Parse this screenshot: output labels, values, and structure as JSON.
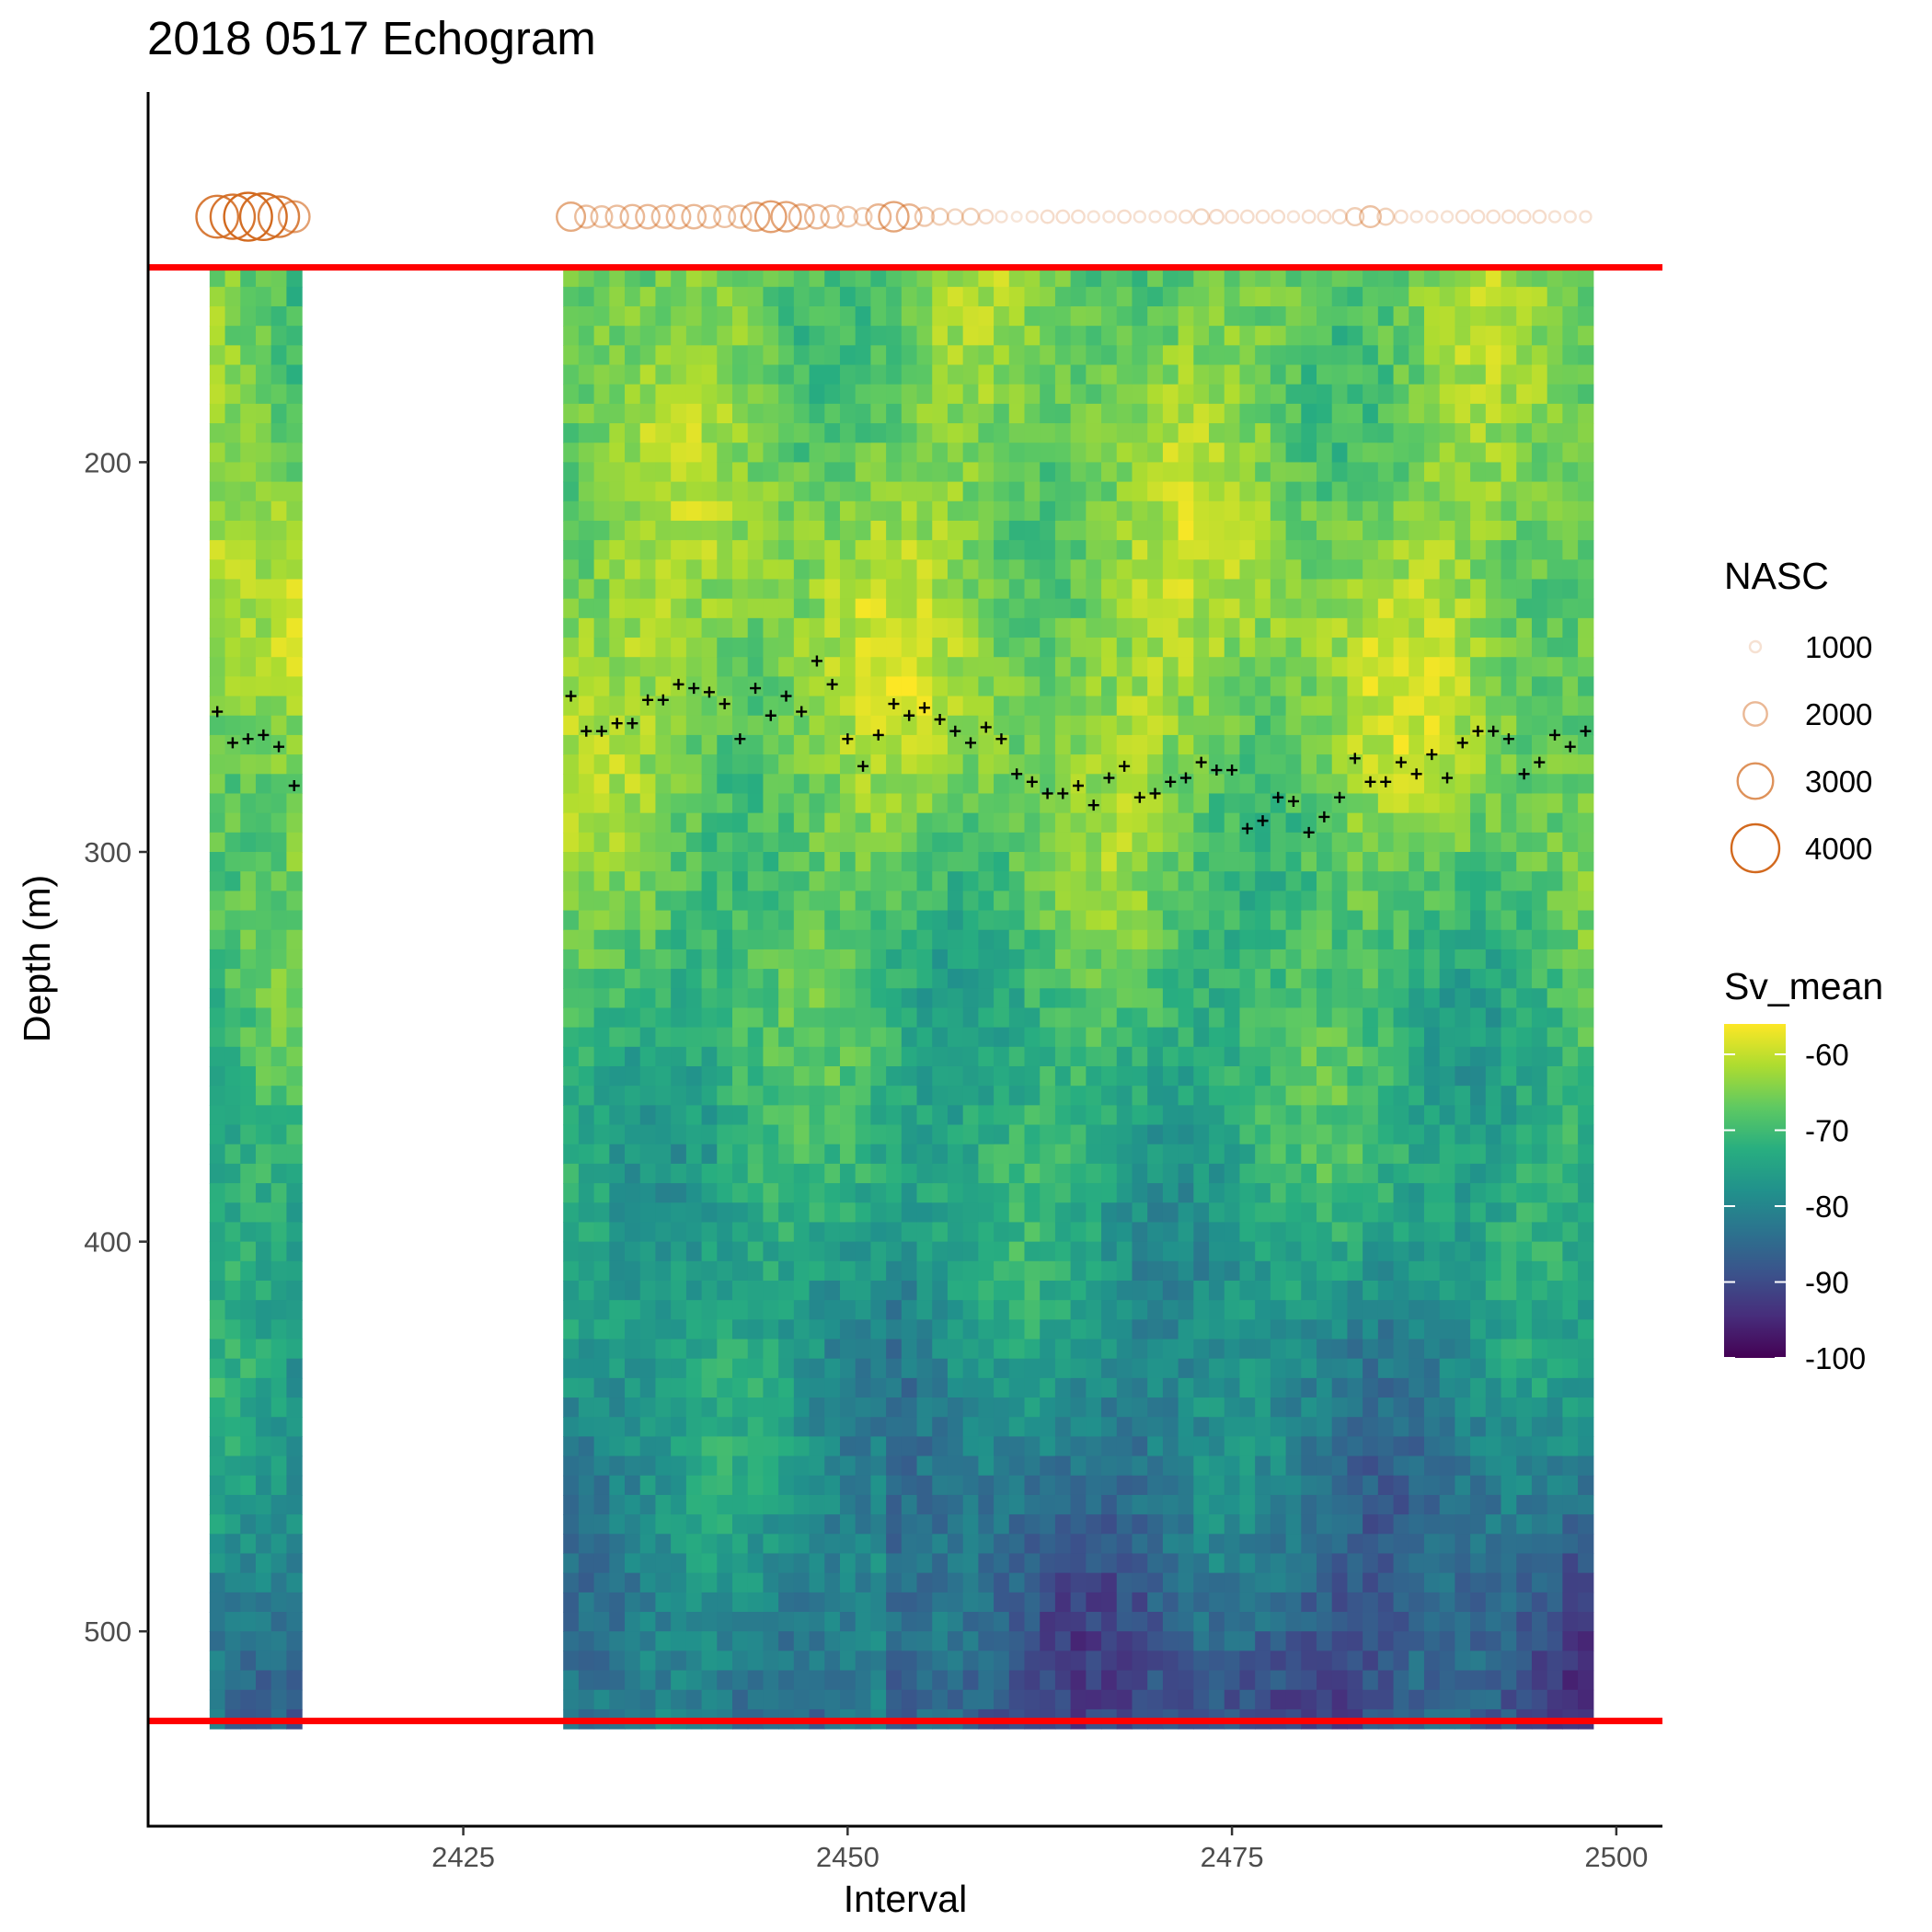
{
  "chart_data": {
    "type": "heatmap",
    "title": "2018 0517 Echogram",
    "xlabel": "Interval",
    "ylabel": "Depth (m)",
    "xlim": [
      2404.5,
      2503
    ],
    "ylim": [
      105,
      550
    ],
    "y_reversed": true,
    "x_ticks": [
      2425,
      2450,
      2475,
      2500
    ],
    "y_ticks": [
      200,
      300,
      400,
      500
    ],
    "grid": false,
    "colorscale": "viridis",
    "colorbar": {
      "title": "Sv_mean",
      "range": [
        -100,
        -56
      ],
      "ticks": [
        -60,
        -70,
        -80,
        -90,
        -100
      ],
      "placement": "right"
    },
    "nasc_legend": {
      "title": "NASC",
      "values": [
        1000,
        2000,
        3000,
        4000
      ],
      "color": "#d2691e"
    },
    "reference_lines": {
      "color": "#ff0000",
      "depths": [
        150,
        523
      ]
    },
    "heatmap_blocks": [
      {
        "interval_start": 2409,
        "interval_end": 2414,
        "depth_top": 150,
        "depth_bottom": 521
      },
      {
        "interval_start": 2432,
        "interval_end": 2498,
        "depth_top": 150,
        "depth_bottom": 521
      }
    ],
    "cell_height_m": 5,
    "high_backscatter_depth_m": 275,
    "nasc_depth_m": 137,
    "nasc_points": [
      {
        "x": 2409,
        "v": 3500
      },
      {
        "x": 2410,
        "v": 3700
      },
      {
        "x": 2411,
        "v": 4000
      },
      {
        "x": 2412,
        "v": 3900
      },
      {
        "x": 2413,
        "v": 3400
      },
      {
        "x": 2414,
        "v": 2600
      },
      {
        "x": 2432,
        "v": 2400
      },
      {
        "x": 2433,
        "v": 1900
      },
      {
        "x": 2434,
        "v": 1800
      },
      {
        "x": 2435,
        "v": 1900
      },
      {
        "x": 2436,
        "v": 2000
      },
      {
        "x": 2437,
        "v": 2000
      },
      {
        "x": 2438,
        "v": 1900
      },
      {
        "x": 2439,
        "v": 2000
      },
      {
        "x": 2440,
        "v": 2000
      },
      {
        "x": 2441,
        "v": 1900
      },
      {
        "x": 2442,
        "v": 1800
      },
      {
        "x": 2443,
        "v": 1900
      },
      {
        "x": 2444,
        "v": 2400
      },
      {
        "x": 2445,
        "v": 2600
      },
      {
        "x": 2446,
        "v": 2500
      },
      {
        "x": 2447,
        "v": 2100
      },
      {
        "x": 2448,
        "v": 2000
      },
      {
        "x": 2449,
        "v": 1900
      },
      {
        "x": 2450,
        "v": 1700
      },
      {
        "x": 2451,
        "v": 1500
      },
      {
        "x": 2452,
        "v": 2100
      },
      {
        "x": 2453,
        "v": 2500
      },
      {
        "x": 2454,
        "v": 2100
      },
      {
        "x": 2455,
        "v": 1600
      },
      {
        "x": 2456,
        "v": 1400
      },
      {
        "x": 2457,
        "v": 1300
      },
      {
        "x": 2458,
        "v": 1400
      },
      {
        "x": 2459,
        "v": 1200
      },
      {
        "x": 2460,
        "v": 1000
      },
      {
        "x": 2461,
        "v": 900
      },
      {
        "x": 2462,
        "v": 1000
      },
      {
        "x": 2463,
        "v": 1100
      },
      {
        "x": 2464,
        "v": 1100
      },
      {
        "x": 2465,
        "v": 1100
      },
      {
        "x": 2466,
        "v": 1000
      },
      {
        "x": 2467,
        "v": 1000
      },
      {
        "x": 2468,
        "v": 1100
      },
      {
        "x": 2469,
        "v": 1000
      },
      {
        "x": 2470,
        "v": 1000
      },
      {
        "x": 2471,
        "v": 1000
      },
      {
        "x": 2472,
        "v": 1100
      },
      {
        "x": 2473,
        "v": 1300
      },
      {
        "x": 2474,
        "v": 1200
      },
      {
        "x": 2475,
        "v": 1100
      },
      {
        "x": 2476,
        "v": 1100
      },
      {
        "x": 2477,
        "v": 1100
      },
      {
        "x": 2478,
        "v": 1100
      },
      {
        "x": 2479,
        "v": 1000
      },
      {
        "x": 2480,
        "v": 1100
      },
      {
        "x": 2481,
        "v": 1100
      },
      {
        "x": 2482,
        "v": 1200
      },
      {
        "x": 2483,
        "v": 1500
      },
      {
        "x": 2484,
        "v": 1800
      },
      {
        "x": 2485,
        "v": 1400
      },
      {
        "x": 2486,
        "v": 1100
      },
      {
        "x": 2487,
        "v": 1000
      },
      {
        "x": 2488,
        "v": 1000
      },
      {
        "x": 2489,
        "v": 1000
      },
      {
        "x": 2490,
        "v": 1100
      },
      {
        "x": 2491,
        "v": 1100
      },
      {
        "x": 2492,
        "v": 1100
      },
      {
        "x": 2493,
        "v": 1100
      },
      {
        "x": 2494,
        "v": 1100
      },
      {
        "x": 2495,
        "v": 1100
      },
      {
        "x": 2496,
        "v": 1000
      },
      {
        "x": 2497,
        "v": 1000
      },
      {
        "x": 2498,
        "v": 1000
      }
    ],
    "plus_markers": [
      {
        "x": 2409,
        "y": 264
      },
      {
        "x": 2410,
        "y": 272
      },
      {
        "x": 2411,
        "y": 271
      },
      {
        "x": 2412,
        "y": 270
      },
      {
        "x": 2413,
        "y": 273
      },
      {
        "x": 2414,
        "y": 283
      },
      {
        "x": 2432,
        "y": 260
      },
      {
        "x": 2433,
        "y": 269
      },
      {
        "x": 2434,
        "y": 269
      },
      {
        "x": 2435,
        "y": 267
      },
      {
        "x": 2436,
        "y": 267
      },
      {
        "x": 2437,
        "y": 261
      },
      {
        "x": 2438,
        "y": 261
      },
      {
        "x": 2439,
        "y": 257
      },
      {
        "x": 2440,
        "y": 258
      },
      {
        "x": 2441,
        "y": 259
      },
      {
        "x": 2442,
        "y": 262
      },
      {
        "x": 2443,
        "y": 271
      },
      {
        "x": 2444,
        "y": 258
      },
      {
        "x": 2445,
        "y": 265
      },
      {
        "x": 2446,
        "y": 260
      },
      {
        "x": 2447,
        "y": 264
      },
      {
        "x": 2448,
        "y": 251
      },
      {
        "x": 2449,
        "y": 257
      },
      {
        "x": 2450,
        "y": 271
      },
      {
        "x": 2451,
        "y": 278
      },
      {
        "x": 2452,
        "y": 270
      },
      {
        "x": 2453,
        "y": 262
      },
      {
        "x": 2454,
        "y": 265
      },
      {
        "x": 2455,
        "y": 263
      },
      {
        "x": 2456,
        "y": 266
      },
      {
        "x": 2457,
        "y": 269
      },
      {
        "x": 2458,
        "y": 272
      },
      {
        "x": 2459,
        "y": 268
      },
      {
        "x": 2460,
        "y": 271
      },
      {
        "x": 2461,
        "y": 280
      },
      {
        "x": 2462,
        "y": 282
      },
      {
        "x": 2463,
        "y": 285
      },
      {
        "x": 2464,
        "y": 285
      },
      {
        "x": 2465,
        "y": 283
      },
      {
        "x": 2466,
        "y": 288
      },
      {
        "x": 2467,
        "y": 281
      },
      {
        "x": 2468,
        "y": 278
      },
      {
        "x": 2469,
        "y": 286
      },
      {
        "x": 2470,
        "y": 285
      },
      {
        "x": 2471,
        "y": 282
      },
      {
        "x": 2472,
        "y": 281
      },
      {
        "x": 2473,
        "y": 277
      },
      {
        "x": 2474,
        "y": 279
      },
      {
        "x": 2475,
        "y": 279
      },
      {
        "x": 2476,
        "y": 294
      },
      {
        "x": 2477,
        "y": 292
      },
      {
        "x": 2478,
        "y": 286
      },
      {
        "x": 2479,
        "y": 287
      },
      {
        "x": 2480,
        "y": 295
      },
      {
        "x": 2481,
        "y": 291
      },
      {
        "x": 2482,
        "y": 286
      },
      {
        "x": 2483,
        "y": 276
      },
      {
        "x": 2484,
        "y": 282
      },
      {
        "x": 2485,
        "y": 282
      },
      {
        "x": 2486,
        "y": 277
      },
      {
        "x": 2487,
        "y": 280
      },
      {
        "x": 2488,
        "y": 275
      },
      {
        "x": 2489,
        "y": 281
      },
      {
        "x": 2490,
        "y": 272
      },
      {
        "x": 2491,
        "y": 269
      },
      {
        "x": 2492,
        "y": 269
      },
      {
        "x": 2493,
        "y": 271
      },
      {
        "x": 2494,
        "y": 280
      },
      {
        "x": 2495,
        "y": 277
      },
      {
        "x": 2496,
        "y": 270
      },
      {
        "x": 2497,
        "y": 273
      },
      {
        "x": 2498,
        "y": 269
      }
    ]
  }
}
